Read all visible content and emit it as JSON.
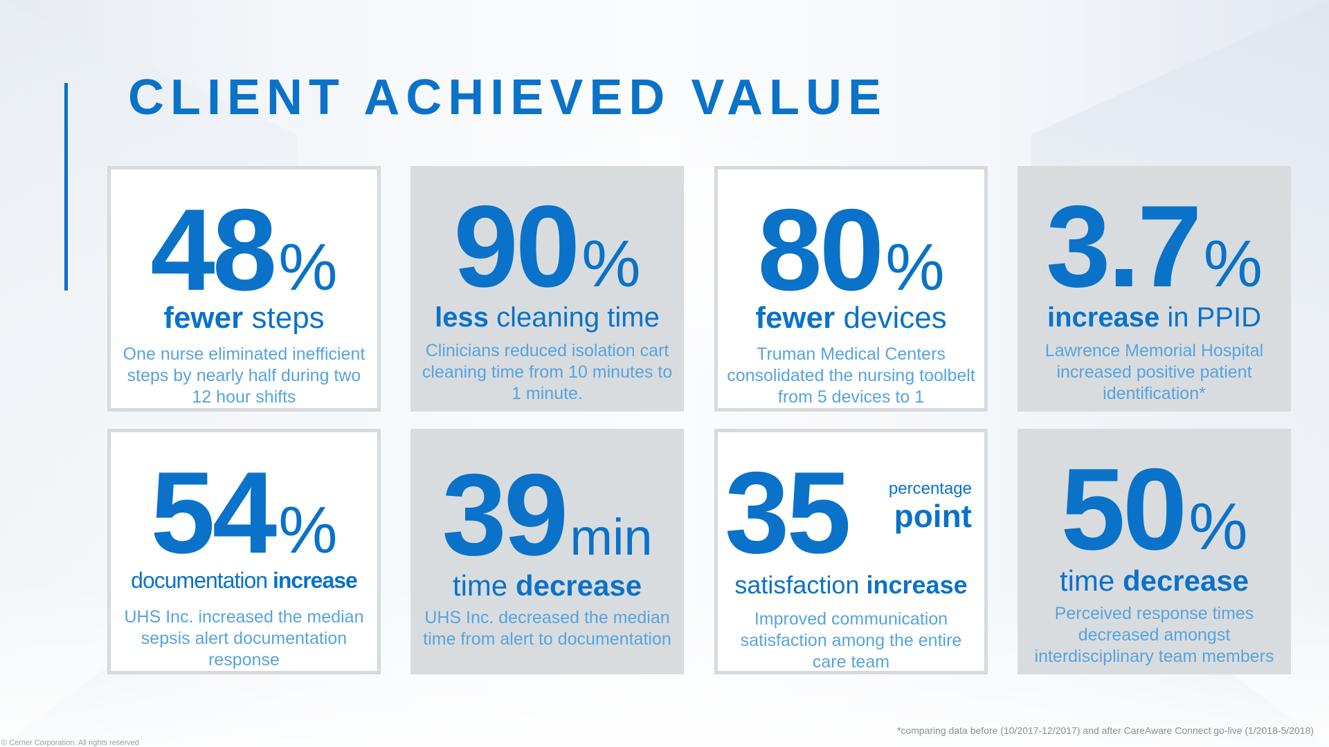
{
  "title": "CLIENT ACHIEVED VALUE",
  "colors": {
    "accent": "#0a72c9",
    "description": "#57a3de",
    "card_gray": "#d9dcdf",
    "card_white": "#ffffff"
  },
  "cards": [
    {
      "number": "48",
      "unit": "%",
      "head_bold": "fewer",
      "head_light": "steps",
      "desc": "One nurse eliminated inefficient steps by nearly half during two 12 hour shifts"
    },
    {
      "number": "90",
      "unit": "%",
      "head_bold": "less",
      "head_light": "cleaning time",
      "desc": "Clinicians reduced isolation cart cleaning time from 10 minutes to 1 minute."
    },
    {
      "number": "80",
      "unit": "%",
      "head_bold": "fewer",
      "head_light": "devices",
      "desc": "Truman Medical Centers consolidated the nursing toolbelt from 5 devices to 1"
    },
    {
      "number": "3.7",
      "unit": "%",
      "head_bold": "increase",
      "head_light": "in PPID",
      "desc": "Lawrence Memorial Hospital increased positive patient identification*"
    },
    {
      "number": "54",
      "unit": "%",
      "head_light": "documentation",
      "head_bold": "increase",
      "desc": "UHS Inc. increased the median sepsis alert documentation response"
    },
    {
      "number": "39",
      "unit": "min",
      "head_light": "time",
      "head_bold": "decrease",
      "desc": "UHS Inc. decreased the median time from alert to documentation"
    },
    {
      "number": "35",
      "unit_small": "percentage",
      "unit_big": "point",
      "head_light": "satisfaction",
      "head_bold": "increase",
      "desc": "Improved communication satisfaction among the entire care team"
    },
    {
      "number": "50",
      "unit": "%",
      "head_light": "time",
      "head_bold": "decrease",
      "desc": "Perceived response times decreased amongst interdisciplinary team members"
    }
  ],
  "footnote": "*comparing data before (10/2017-12/2017) and after CareAware Connect go-live (1/2018-5/2018)",
  "copyright": "© Cerner Corporation.  All rights reserved"
}
